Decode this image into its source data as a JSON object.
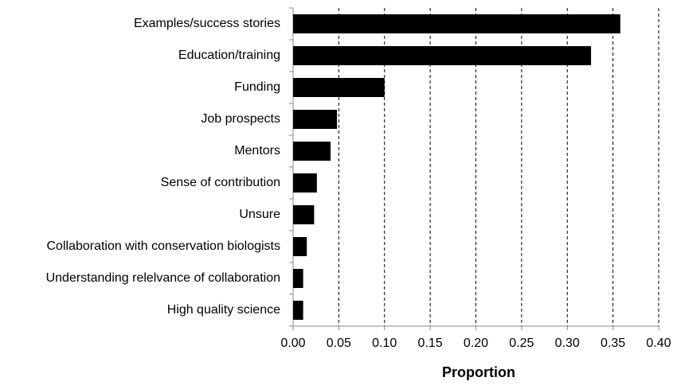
{
  "chart_data": {
    "type": "bar",
    "orientation": "horizontal",
    "x_label": "Proportion",
    "categories": [
      "Examples/success stories",
      "Education/training",
      "Funding",
      "Job prospects",
      "Mentors",
      "Sense of contribution",
      "Unsure",
      "Collaboration with conservation biologists",
      "Understanding relelvance of collaboration",
      "High quality science"
    ],
    "values": [
      0.358,
      0.326,
      0.1,
      0.048,
      0.041,
      0.026,
      0.023,
      0.015,
      0.011,
      0.011
    ],
    "color": "#000000",
    "xlim": [
      0,
      0.4
    ],
    "xticks": [
      {
        "value": 0,
        "label": "0.00"
      },
      {
        "value": 0.05,
        "label": "0.05"
      },
      {
        "value": 0.1,
        "label": "0.10"
      },
      {
        "value": 0.15,
        "label": "0.15"
      },
      {
        "value": 0.2,
        "label": "0.20"
      },
      {
        "value": 0.25,
        "label": "0.25"
      },
      {
        "value": 0.3,
        "label": "0.30"
      },
      {
        "value": 0.35,
        "label": "0.35"
      },
      {
        "value": 0.4,
        "label": "0.40"
      }
    ],
    "grid": true
  }
}
